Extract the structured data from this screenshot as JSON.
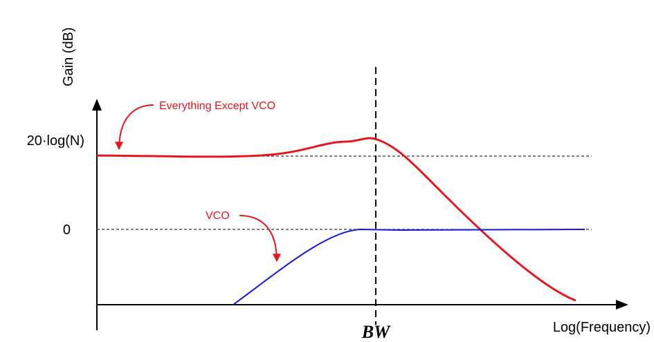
{
  "axes": {
    "y_label": "Gain (dB)",
    "x_label": "Log(Frequency)"
  },
  "levels": {
    "top": "20·log(N)",
    "zero": "0"
  },
  "marker": "BW",
  "annotations": {
    "loop": "Everything Except VCO",
    "vco": "VCO"
  }
}
